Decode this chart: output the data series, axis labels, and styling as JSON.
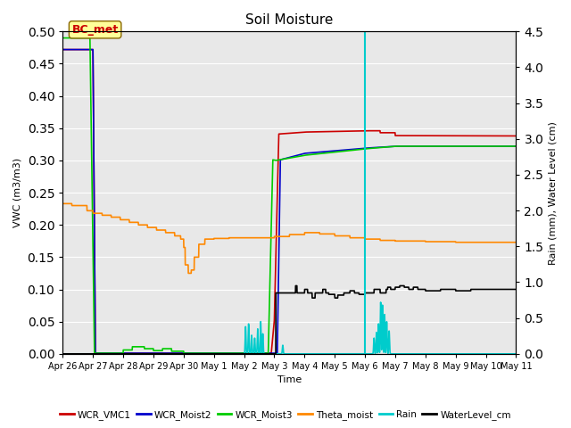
{
  "title": "Soil Moisture",
  "xlabel": "Time",
  "ylabel_left": "VWC (m3/m3)",
  "ylabel_right": "Rain (mm), Water Level (cm)",
  "ylim_left": [
    0,
    0.5
  ],
  "ylim_right": [
    0,
    4.5
  ],
  "annotation_text": "BC_met",
  "plot_bg": "#e8e8e8",
  "series": {
    "WCR_VMC1": {
      "color": "#cc0000",
      "lw": 1.2
    },
    "WCR_Moist2": {
      "color": "#0000cc",
      "lw": 1.2
    },
    "WCR_Moist3": {
      "color": "#00cc00",
      "lw": 1.2
    },
    "Theta_moist": {
      "color": "#ff8800",
      "lw": 1.2
    },
    "Rain": {
      "color": "#00cccc",
      "lw": 1.2
    },
    "WaterLevel_cm": {
      "color": "#000000",
      "lw": 1.2
    }
  },
  "xtick_labels": [
    "Apr 26",
    "Apr 27",
    "Apr 28",
    "Apr 29",
    "Apr 30",
    "May 1",
    "May 2",
    "May 3",
    "May 4",
    "May 5",
    "May 6",
    "May 7",
    "May 8",
    "May 9",
    "May 10",
    "May 11"
  ],
  "xtick_positions": [
    0,
    1,
    2,
    3,
    4,
    5,
    6,
    7,
    8,
    9,
    10,
    11,
    12,
    13,
    14,
    15
  ],
  "yticks_left": [
    0.0,
    0.05,
    0.1,
    0.15,
    0.2,
    0.25,
    0.3,
    0.35,
    0.4,
    0.45,
    0.5
  ],
  "yticks_right": [
    0.0,
    0.5,
    1.0,
    1.5,
    2.0,
    2.5,
    3.0,
    3.5,
    4.0,
    4.5
  ],
  "cyan_vline_day": 10.0
}
